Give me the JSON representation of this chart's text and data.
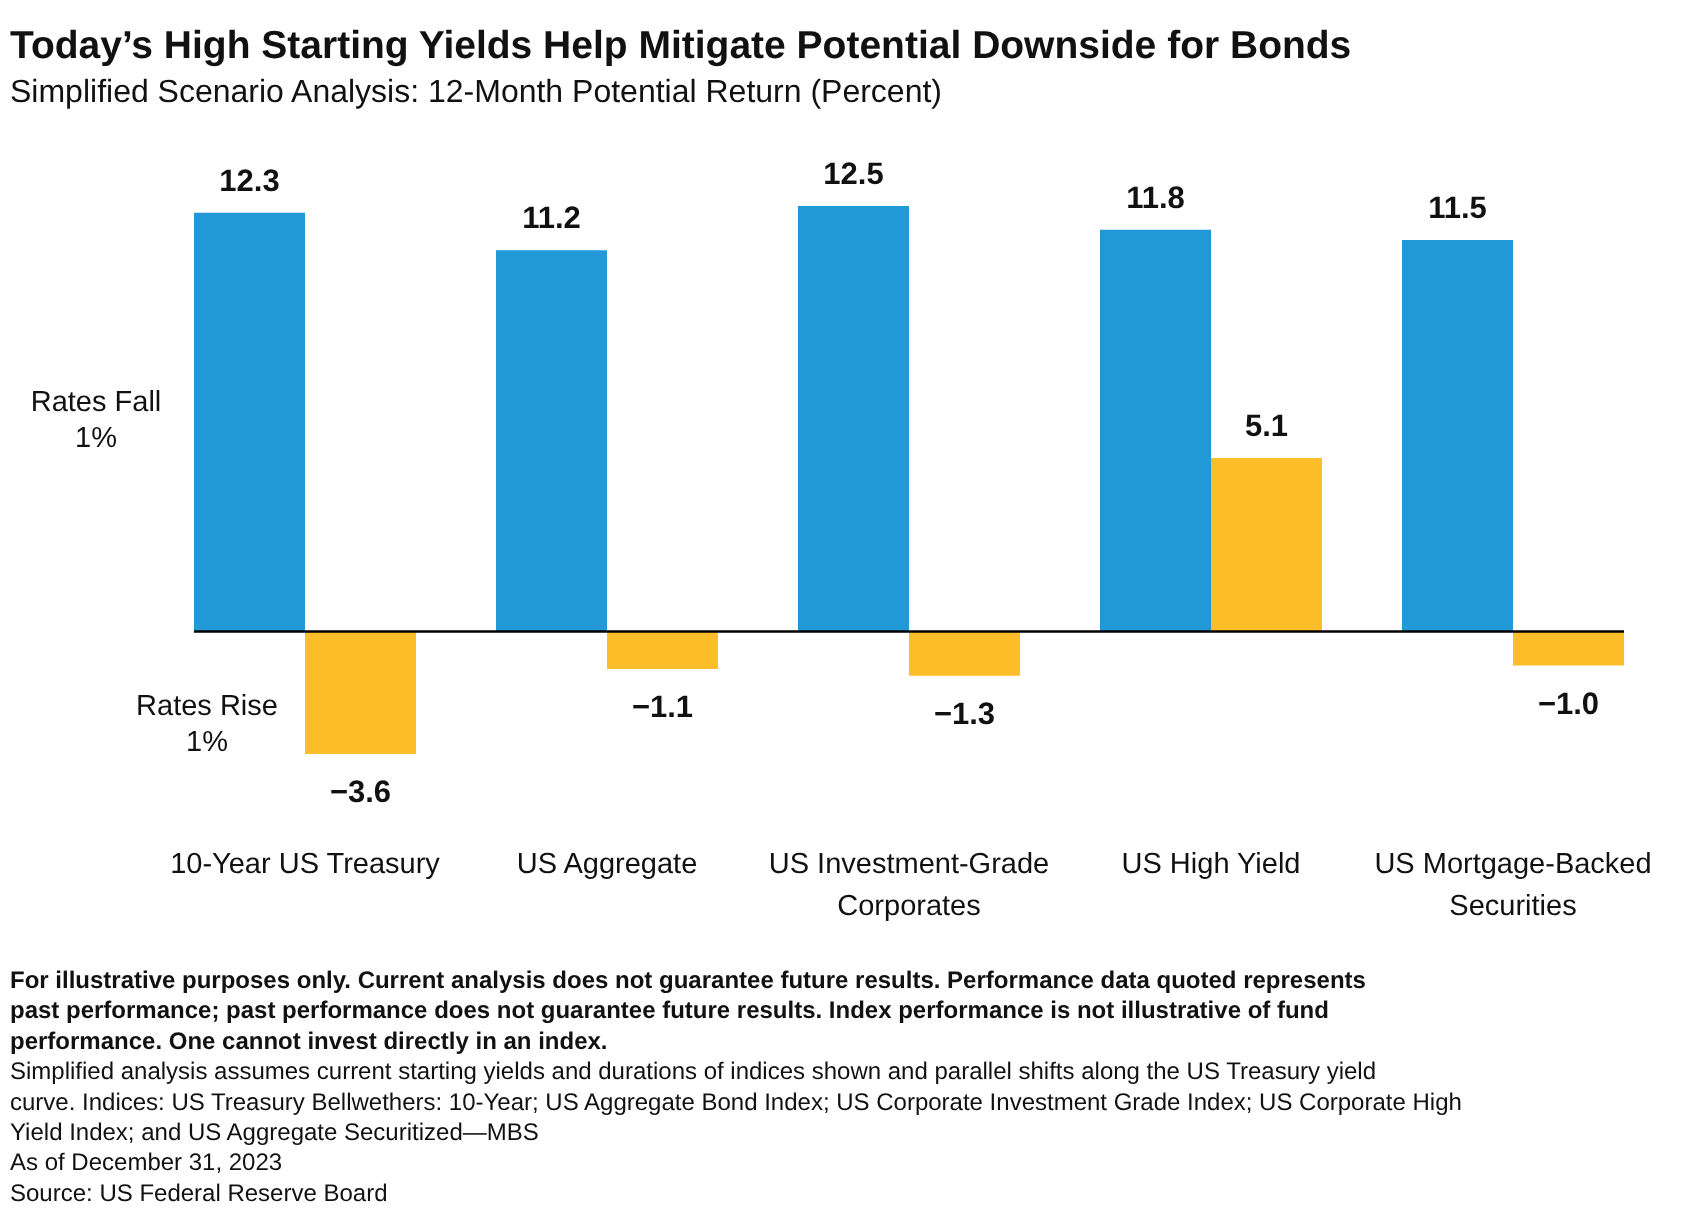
{
  "chart_data": {
    "type": "bar",
    "title": "Today’s High Starting Yields Help Mitigate Potential Downside for Bonds",
    "subtitle": "Simplified Scenario Analysis: 12-Month Potential Return (Percent)",
    "categories": [
      "10-Year US Treasury",
      "US Aggregate",
      "US Investment-Grade Corporates",
      "US High Yield",
      "US Mortgage-Backed Securities"
    ],
    "series": [
      {
        "name": "Rates Fall 1%",
        "color": "#2099d6",
        "values": [
          12.3,
          11.2,
          12.5,
          11.8,
          11.5
        ],
        "value_labels": [
          "12.3",
          "11.2",
          "12.5",
          "11.8",
          "11.5"
        ]
      },
      {
        "name": "Rates Rise 1%",
        "color": "#febe2a",
        "values": [
          -3.6,
          -1.1,
          -1.3,
          5.1,
          -1.0
        ],
        "value_labels": [
          "−3.6",
          "−1.1",
          "−1.3",
          "5.1",
          "−1.0"
        ]
      }
    ],
    "annotations": [
      "For illustrative purposes only. Current analysis does not guarantee future results. Performance data quoted represents past performance; past performance does not guarantee future results. Index performance is not illustrative of fund performance. One cannot invest directly in an index.",
      "Simplified analysis assumes current starting yields and durations of indices shown and parallel shifts along the US Treasury yield curve. Indices: US Treasury Bellwethers: 10-Year; US Aggregate Bond Index; US Corporate Investment Grade Index; US Corporate High Yield Index; and US Aggregate Securitized—MBS",
      "As of December 31, 2023",
      "Source: US Federal Reserve Board"
    ]
  }
}
